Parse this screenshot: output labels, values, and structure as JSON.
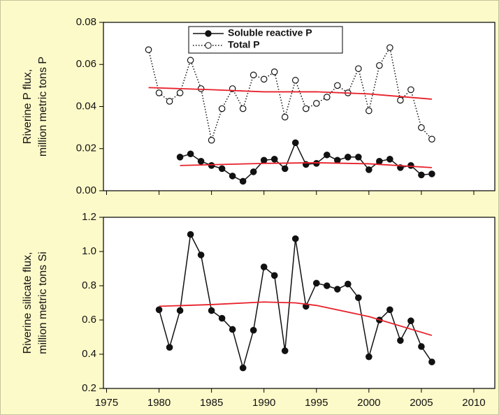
{
  "chart_data": [
    {
      "type": "line",
      "ylabel": [
        "Riverine P flux,",
        "million metric tons P"
      ],
      "xlim": [
        1974.7,
        2012
      ],
      "xticks": [
        1975,
        1980,
        1985,
        1990,
        1995,
        2000,
        2005,
        2010
      ],
      "show_xtick_labels": false,
      "ylim": [
        0,
        0.08
      ],
      "yticks": [
        {
          "value": 0,
          "label": "0.00"
        },
        0.02,
        0.04,
        0.06,
        0.08
      ],
      "legend": "upper center",
      "series": [
        {
          "name": "Soluble reactive P",
          "color": "#111111",
          "line_style": "solid",
          "marker": "filled",
          "x": [
            1982,
            1983,
            1984,
            1985,
            1986,
            1987,
            1988,
            1989,
            1990,
            1991,
            1992,
            1993,
            1994,
            1995,
            1996,
            1997,
            1998,
            1999,
            2000,
            2001,
            2002,
            2003,
            2004,
            2005,
            2006
          ],
          "values": [
            0.016,
            0.0175,
            0.014,
            0.012,
            0.0105,
            0.007,
            0.0045,
            0.009,
            0.0145,
            0.015,
            0.0105,
            0.0228,
            0.0125,
            0.013,
            0.017,
            0.0145,
            0.016,
            0.016,
            0.01,
            0.014,
            0.015,
            0.011,
            0.012,
            0.0075,
            0.008
          ]
        },
        {
          "name": "Total P",
          "color": "#111111",
          "line_style": "dotted",
          "marker": "open",
          "x": [
            1979,
            1980,
            1981,
            1982,
            1983,
            1984,
            1985,
            1986,
            1987,
            1988,
            1989,
            1990,
            1991,
            1992,
            1993,
            1994,
            1995,
            1996,
            1997,
            1998,
            1999,
            2000,
            2001,
            2002,
            2003,
            2004,
            2005,
            2006
          ],
          "values": [
            0.067,
            0.0465,
            0.0425,
            0.0465,
            0.062,
            0.0485,
            0.024,
            0.039,
            0.0485,
            0.039,
            0.055,
            0.053,
            0.0565,
            0.035,
            0.0525,
            0.039,
            0.0415,
            0.0445,
            0.05,
            0.0465,
            0.058,
            0.038,
            0.0595,
            0.068,
            0.043,
            0.048,
            0.03,
            0.0245
          ]
        },
        {
          "color": "#e8202a",
          "line_style": "solid",
          "marker": "none",
          "x": [
            1982,
            1990,
            1995,
            2000,
            2006
          ],
          "values": [
            0.012,
            0.013,
            0.0133,
            0.0128,
            0.011
          ]
        },
        {
          "color": "#e8202a",
          "line_style": "solid",
          "marker": "none",
          "x": [
            1979,
            1985,
            1990,
            1995,
            2000,
            2006
          ],
          "values": [
            0.049,
            0.048,
            0.047,
            0.047,
            0.046,
            0.0435
          ]
        }
      ]
    },
    {
      "type": "line",
      "ylabel": [
        "Riverine silicate flux,",
        "million metric tons Si"
      ],
      "xlim": [
        1974.7,
        2012
      ],
      "xticks": [
        1975,
        1980,
        1985,
        1990,
        1995,
        2000,
        2005,
        2010
      ],
      "show_xtick_labels": true,
      "ylim": [
        0.2,
        1.2
      ],
      "yticks": [
        0.2,
        0.4,
        0.6,
        0.8,
        {
          "value": 1,
          "label": "1.0"
        },
        1.2
      ],
      "series": [
        {
          "color": "#111111",
          "line_style": "solid",
          "marker": "filled",
          "x": [
            1980,
            1981,
            1982,
            1983,
            1984,
            1985,
            1986,
            1987,
            1988,
            1989,
            1990,
            1991,
            1992,
            1993,
            1994,
            1995,
            1996,
            1997,
            1998,
            1999,
            2000,
            2001,
            2002,
            2003,
            2004,
            2005,
            2006
          ],
          "values": [
            0.66,
            0.44,
            0.655,
            1.1,
            0.98,
            0.655,
            0.61,
            0.545,
            0.32,
            0.54,
            0.91,
            0.86,
            0.42,
            1.075,
            0.68,
            0.815,
            0.8,
            0.78,
            0.81,
            0.73,
            0.385,
            0.6,
            0.66,
            0.48,
            0.595,
            0.445,
            0.355
          ]
        },
        {
          "color": "#e8202a",
          "line_style": "solid",
          "marker": "none",
          "x": [
            1980,
            1985,
            1990,
            1993,
            1995,
            2000,
            2006
          ],
          "values": [
            0.68,
            0.69,
            0.705,
            0.7,
            0.685,
            0.62,
            0.51
          ]
        }
      ]
    }
  ]
}
